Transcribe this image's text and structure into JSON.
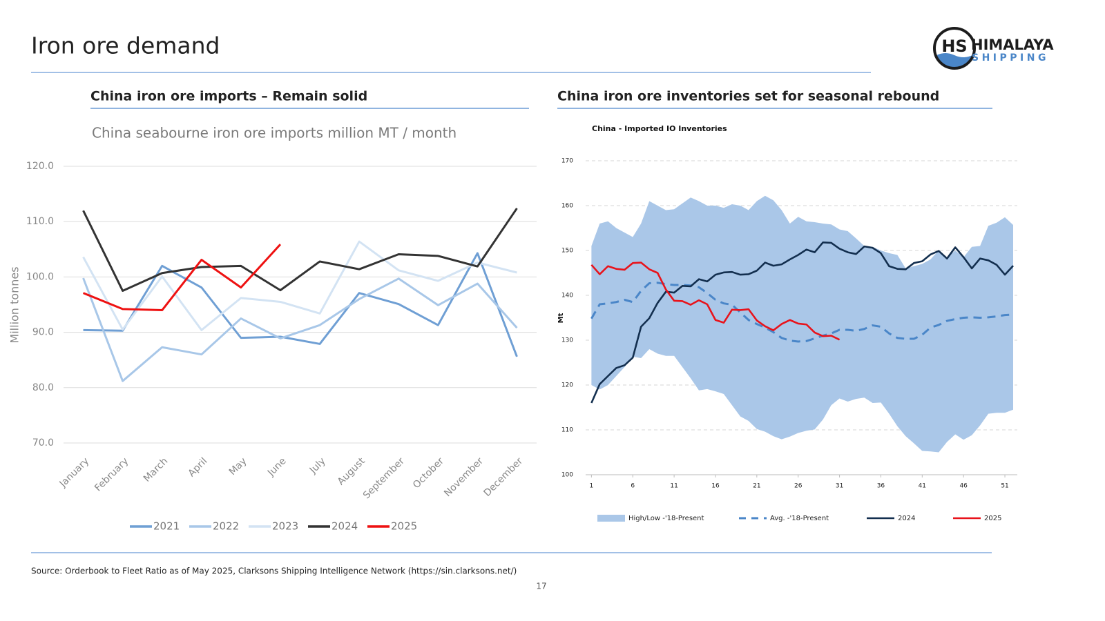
{
  "header": {
    "title": "Iron ore demand",
    "logo_mark": "HS",
    "logo_name": "HIMALAYA",
    "logo_sub": "SHIPPING"
  },
  "chart_data": [
    {
      "type": "line",
      "heading": "China iron ore imports – Remain solid",
      "title": "China seabourne iron ore imports million MT / month",
      "y_label": "Million tonnes",
      "categories": [
        "January",
        "February",
        "March",
        "April",
        "May",
        "June",
        "July",
        "August",
        "September",
        "October",
        "November",
        "December"
      ],
      "ylim": [
        70,
        120
      ],
      "yticks": [
        {
          "value": 70,
          "label": "70.0"
        },
        {
          "value": 80,
          "label": "80.0"
        },
        {
          "value": 90,
          "label": "90.0"
        },
        {
          "value": 100,
          "label": "100.0"
        },
        {
          "value": 110,
          "label": "110.0"
        },
        {
          "value": 120,
          "label": "120.0"
        }
      ],
      "grid": true,
      "legend": "bottom",
      "series": [
        {
          "name": "2021",
          "color": "#6f9fd4",
          "values": [
            90.4,
            90.3,
            102,
            98.1,
            89,
            89.2,
            87.9,
            97.1,
            95.1,
            91.3,
            104.3,
            85.6
          ]
        },
        {
          "name": "2022",
          "color": "#a8c7e8",
          "values": [
            99.8,
            81.2,
            87.3,
            86,
            92.5,
            88.9,
            91.3,
            96,
            99.7,
            94.9,
            98.8,
            90.8
          ]
        },
        {
          "name": "2023",
          "color": "#d3e3f3",
          "values": [
            103.6,
            90.5,
            100.1,
            90.4,
            96.2,
            95.5,
            93.4,
            106.4,
            101.2,
            99.3,
            102.6,
            100.8
          ]
        },
        {
          "name": "2024",
          "color": "#333333",
          "values": [
            112,
            97.5,
            100.7,
            101.8,
            102,
            97.6,
            102.8,
            101.4,
            104.1,
            103.8,
            101.9,
            112.4
          ]
        },
        {
          "name": "2025",
          "color": "#ee1111",
          "values": [
            97.1,
            94.2,
            94,
            103.1,
            98.1,
            105.9,
            null,
            null,
            null,
            null,
            null,
            null
          ]
        }
      ]
    },
    {
      "type": "line",
      "heading": "China iron ore inventories set for seasonal rebound",
      "title": "China - Imported IO Inventories",
      "y_label": "Mt",
      "x": [
        1,
        2,
        3,
        4,
        5,
        6,
        7,
        8,
        9,
        10,
        11,
        12,
        13,
        14,
        15,
        16,
        17,
        18,
        19,
        20,
        21,
        22,
        23,
        24,
        25,
        26,
        27,
        28,
        29,
        30,
        31,
        32,
        33,
        34,
        35,
        36,
        37,
        38,
        39,
        40,
        41,
        42,
        43,
        44,
        45,
        46,
        47,
        48,
        49,
        50,
        51,
        52
      ],
      "xlim": [
        0.3,
        52.5
      ],
      "xticks": [
        1,
        6,
        11,
        16,
        21,
        26,
        31,
        36,
        41,
        46,
        51
      ],
      "ylim": [
        100,
        170
      ],
      "yticks": [
        100,
        110,
        120,
        130,
        140,
        150,
        160,
        170
      ],
      "grid": true,
      "grid_style": "dashed",
      "legend": "bottom",
      "series": [
        {
          "name": "High/Low -'18-Present",
          "color": "#aac7e8",
          "style": "band",
          "high": [
            151,
            156,
            156.5,
            155,
            154,
            153,
            156,
            161,
            160,
            159,
            159.2,
            160.5,
            161.8,
            161,
            160,
            160,
            159.5,
            160.3,
            160,
            159,
            161,
            162.2,
            161.2,
            159,
            156,
            157.5,
            156.5,
            156.3,
            156,
            155.8,
            154.7,
            154.3,
            152.7,
            151,
            150.8,
            150,
            149.4,
            149,
            146,
            146.5,
            147,
            148,
            150,
            148.5,
            150,
            148.5,
            150.8,
            151,
            155.5,
            156.2,
            157.4,
            155.7
          ],
          "low": [
            120,
            119,
            120,
            122,
            124,
            126.3,
            126,
            128,
            127,
            126.5,
            126.5,
            124,
            121.5,
            118.8,
            119.1,
            118.6,
            118,
            115.5,
            113,
            112,
            110.2,
            109.6,
            108.6,
            107.9,
            108.5,
            109.3,
            109.8,
            110.1,
            112.3,
            115.5,
            117,
            116.3,
            116.9,
            117.2,
            116,
            116.1,
            113.6,
            110.8,
            108.6,
            107,
            105.3,
            105.2,
            105,
            107.3,
            109,
            107.8,
            108.8,
            111,
            113.6,
            113.8,
            113.8,
            114.5
          ]
        },
        {
          "name": "Avg. -'18-Present",
          "color": "#4a86c8",
          "style": "dashed",
          "values": [
            134.8,
            138,
            138.2,
            138.5,
            139,
            138.5,
            141,
            142.7,
            142.8,
            142.5,
            142.3,
            142.3,
            142.2,
            141.8,
            140.5,
            139,
            138.2,
            137.9,
            136.2,
            134.5,
            133.6,
            132.8,
            131.8,
            130.5,
            129.9,
            129.7,
            129.8,
            130.4,
            131,
            131.5,
            132.3,
            132.3,
            132.1,
            132.5,
            133.3,
            133,
            131.5,
            130.5,
            130.3,
            130.3,
            131.2,
            132.8,
            133.4,
            134.3,
            134.7,
            135,
            135.1,
            135,
            135.1,
            135.3,
            135.6,
            135.7
          ]
        },
        {
          "name": "2024",
          "color": "#132f4f",
          "values": [
            116,
            120.2,
            122,
            123.8,
            124.4,
            126.1,
            133,
            134.9,
            138.3,
            140.8,
            140.6,
            142.1,
            142,
            143.6,
            143.1,
            144.6,
            145.1,
            145.2,
            144.6,
            144.7,
            145.5,
            147.3,
            146.6,
            146.9,
            148,
            149,
            150.2,
            149.6,
            151.8,
            151.7,
            150.4,
            149.6,
            149.2,
            150.9,
            150.6,
            149.4,
            146.5,
            145.9,
            145.8,
            147.2,
            147.6,
            149.1,
            149.9,
            148.2,
            150.7,
            148.5,
            146,
            148.2,
            147.8,
            146.8,
            144.6,
            146.6
          ]
        },
        {
          "name": "2025",
          "color": "#e8131b",
          "values": [
            146.8,
            144.7,
            146.5,
            145.9,
            145.7,
            147.2,
            147.3,
            145.8,
            145,
            141.3,
            138.8,
            138.7,
            137.9,
            138.9,
            138,
            134.5,
            133.9,
            136.8,
            136.7,
            136.9,
            134.4,
            133.1,
            132.2,
            133.6,
            134.5,
            133.7,
            133.5,
            131.7,
            130.9,
            131,
            130.1,
            null,
            null,
            null,
            null,
            null,
            null,
            null,
            null,
            null,
            null,
            null,
            null,
            null,
            null,
            null,
            null,
            null,
            null,
            null,
            null,
            null
          ]
        }
      ]
    }
  ],
  "footer": {
    "source": "Source: Orderbook to Fleet Ratio as of May 2025, Clarksons Shipping Intelligence Network (https://sin.clarksons.net/)",
    "page": "17"
  }
}
